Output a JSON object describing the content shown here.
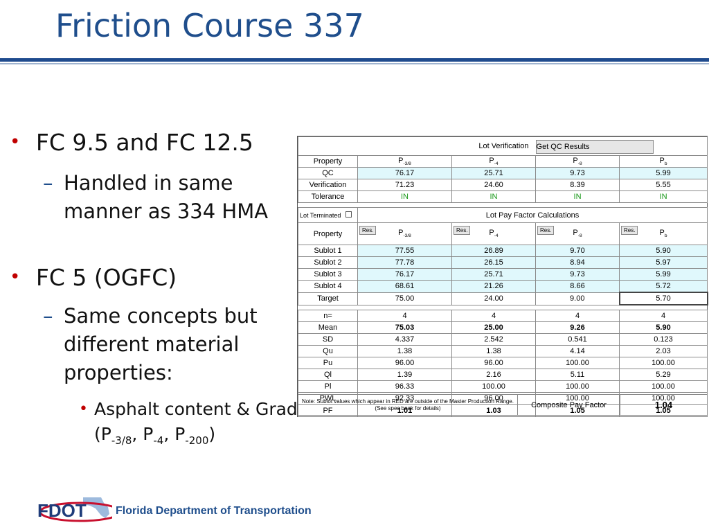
{
  "slide": {
    "title": "Friction Course 337",
    "bullet1": "FC 9.5 and FC 12.5",
    "bullet1_sub": "Handled in same manner as 334 HMA",
    "bullet2": "FC 5 (OGFC)",
    "bullet2_sub": "Same concepts but different material properties:",
    "bullet2_subsub_prefix": "Asphalt content & Gradation (P",
    "sub_38": "-3/8",
    "sub_4": "-4",
    "sub_200": "-200",
    "sep": ", P",
    "close": ")"
  },
  "footer": {
    "logo_text": "FDOT",
    "org": "Florida Department of Transportation"
  },
  "table": {
    "lot_verification": "Lot Verification",
    "get_qc_button": "Get QC Results",
    "property": "Property",
    "col_sym": [
      "P",
      "P",
      "P",
      "P"
    ],
    "col_sub": [
      "-3/8",
      "-4",
      "-8",
      "b"
    ],
    "verif_rows": [
      {
        "label": "QC",
        "values": [
          "76.17",
          "25.71",
          "9.73",
          "5.99"
        ]
      },
      {
        "label": "Verification",
        "values": [
          "71.23",
          "24.60",
          "8.39",
          "5.55"
        ]
      },
      {
        "label": "Tolerance",
        "values": [
          "IN",
          "IN",
          "IN",
          "IN"
        ]
      }
    ],
    "lot_terminated": "Lot Terminated",
    "pay_factor_title": "Lot Pay Factor Calculations",
    "res_label": "Res.",
    "sublots": [
      {
        "label": "Sublot 1",
        "values": [
          "77.55",
          "26.89",
          "9.70",
          "5.90"
        ]
      },
      {
        "label": "Sublot 2",
        "values": [
          "77.78",
          "26.15",
          "8.94",
          "5.97"
        ]
      },
      {
        "label": "Sublot 3",
        "values": [
          "76.17",
          "25.71",
          "9.73",
          "5.99"
        ]
      },
      {
        "label": "Sublot 4",
        "values": [
          "68.61",
          "21.26",
          "8.66",
          "5.72"
        ]
      }
    ],
    "target": {
      "label": "Target",
      "values": [
        "75.00",
        "24.00",
        "9.00",
        "5.70"
      ]
    },
    "stats": [
      {
        "label": "n=",
        "values": [
          "4",
          "4",
          "4",
          "4"
        ]
      },
      {
        "label": "Mean",
        "values": [
          "75.03",
          "25.00",
          "9.26",
          "5.90"
        ]
      },
      {
        "label": "SD",
        "values": [
          "4.337",
          "2.542",
          "0.541",
          "0.123"
        ]
      },
      {
        "label": "Qu",
        "values": [
          "1.38",
          "1.38",
          "4.14",
          "2.03"
        ]
      },
      {
        "label": "Pu",
        "values": [
          "96.00",
          "96.00",
          "100.00",
          "100.00"
        ]
      },
      {
        "label": "Ql",
        "values": [
          "1.39",
          "2.16",
          "5.11",
          "5.29"
        ]
      },
      {
        "label": "Pl",
        "values": [
          "96.33",
          "100.00",
          "100.00",
          "100.00"
        ]
      },
      {
        "label": "PWL",
        "values": [
          "92.33",
          "96.00",
          "100.00",
          "100.00"
        ]
      },
      {
        "label": "PF",
        "values": [
          "1.01",
          "1.03",
          "1.05",
          "1.05"
        ]
      }
    ],
    "note": "Note: Sublot values which appear in RED are outside of the Master Production Range.(See spec book for details)",
    "composite_label": "Composite Pay Factor",
    "composite_value": "1.04"
  }
}
